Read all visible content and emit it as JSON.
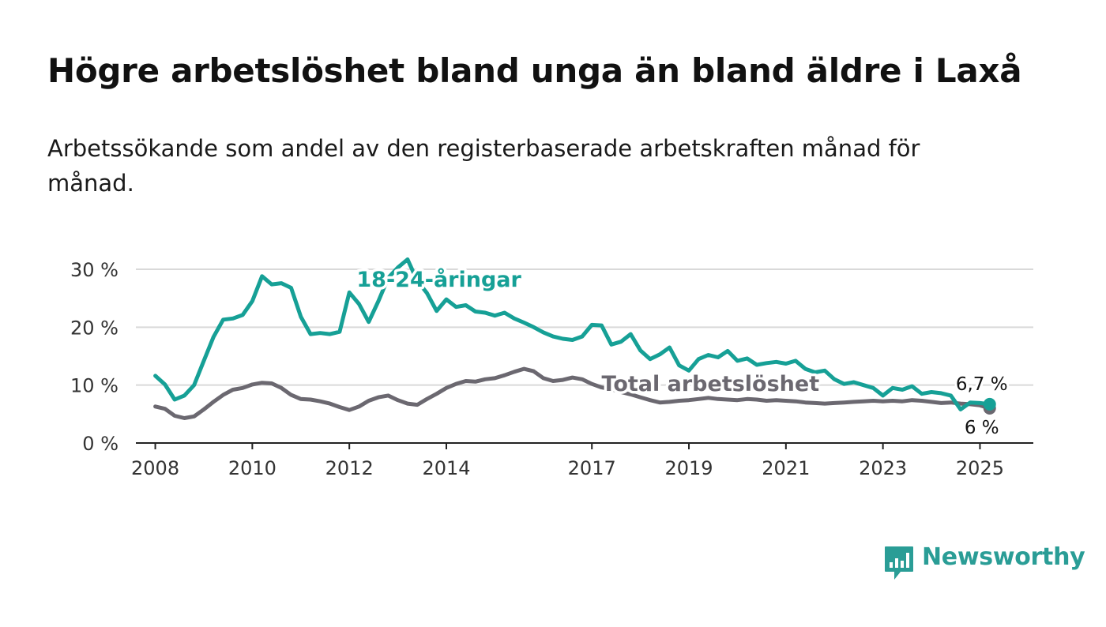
{
  "title": "Högre arbetslöshet bland unga än bland äldre i Laxå",
  "subtitle": "Arbetssökande som andel av den registerbaserade arbetskraften månad för månad.",
  "brand": {
    "name": "Newsworthy",
    "color": "#2a9d96",
    "icon": "bar-chart-speech-bubble-icon"
  },
  "chart_data": {
    "type": "line",
    "xlim": [
      2007.6,
      2026.1
    ],
    "ylim": [
      0,
      30
    ],
    "x_ticks": [
      2008,
      2010,
      2012,
      2014,
      2017,
      2019,
      2021,
      2023,
      2025
    ],
    "x_tick_labels": [
      "2008",
      "2010",
      "2012",
      "2014",
      "2017",
      "2019",
      "2021",
      "2023",
      "2025"
    ],
    "y_ticks": [
      0,
      10,
      20,
      30
    ],
    "y_tick_labels": [
      "0 %",
      "10 %",
      "20 %",
      "30 %"
    ],
    "grid": true,
    "series": [
      {
        "name": "Total arbetslöshet",
        "color": "#6b6870",
        "label": "Total arbetslöshet",
        "end_label": "6 %",
        "points": [
          [
            2008.0,
            6.3
          ],
          [
            2008.2,
            5.9
          ],
          [
            2008.4,
            4.7
          ],
          [
            2008.6,
            4.3
          ],
          [
            2008.8,
            4.6
          ],
          [
            2009.0,
            5.8
          ],
          [
            2009.2,
            7.1
          ],
          [
            2009.4,
            8.3
          ],
          [
            2009.6,
            9.2
          ],
          [
            2009.8,
            9.5
          ],
          [
            2010.0,
            10.1
          ],
          [
            2010.2,
            10.4
          ],
          [
            2010.4,
            10.3
          ],
          [
            2010.6,
            9.5
          ],
          [
            2010.8,
            8.3
          ],
          [
            2011.0,
            7.6
          ],
          [
            2011.2,
            7.5
          ],
          [
            2011.4,
            7.2
          ],
          [
            2011.6,
            6.8
          ],
          [
            2011.8,
            6.2
          ],
          [
            2012.0,
            5.7
          ],
          [
            2012.2,
            6.3
          ],
          [
            2012.4,
            7.3
          ],
          [
            2012.6,
            7.9
          ],
          [
            2012.8,
            8.2
          ],
          [
            2013.0,
            7.4
          ],
          [
            2013.2,
            6.8
          ],
          [
            2013.4,
            6.6
          ],
          [
            2013.6,
            7.6
          ],
          [
            2013.8,
            8.5
          ],
          [
            2014.0,
            9.5
          ],
          [
            2014.2,
            10.2
          ],
          [
            2014.4,
            10.7
          ],
          [
            2014.6,
            10.6
          ],
          [
            2014.8,
            11.0
          ],
          [
            2015.0,
            11.2
          ],
          [
            2015.2,
            11.7
          ],
          [
            2015.4,
            12.3
          ],
          [
            2015.6,
            12.8
          ],
          [
            2015.8,
            12.4
          ],
          [
            2016.0,
            11.2
          ],
          [
            2016.2,
            10.7
          ],
          [
            2016.4,
            10.9
          ],
          [
            2016.6,
            11.3
          ],
          [
            2016.8,
            11.0
          ],
          [
            2017.0,
            10.2
          ],
          [
            2017.2,
            9.6
          ],
          [
            2017.4,
            9.3
          ],
          [
            2017.6,
            8.8
          ],
          [
            2017.8,
            8.4
          ],
          [
            2018.0,
            7.9
          ],
          [
            2018.2,
            7.4
          ],
          [
            2018.4,
            7.0
          ],
          [
            2018.6,
            7.1
          ],
          [
            2018.8,
            7.3
          ],
          [
            2019.0,
            7.4
          ],
          [
            2019.2,
            7.6
          ],
          [
            2019.4,
            7.8
          ],
          [
            2019.6,
            7.6
          ],
          [
            2019.8,
            7.5
          ],
          [
            2020.0,
            7.4
          ],
          [
            2020.2,
            7.6
          ],
          [
            2020.4,
            7.5
          ],
          [
            2020.6,
            7.3
          ],
          [
            2020.8,
            7.4
          ],
          [
            2021.0,
            7.3
          ],
          [
            2021.2,
            7.2
          ],
          [
            2021.4,
            7.0
          ],
          [
            2021.6,
            6.9
          ],
          [
            2021.8,
            6.8
          ],
          [
            2022.0,
            6.9
          ],
          [
            2022.2,
            7.0
          ],
          [
            2022.4,
            7.1
          ],
          [
            2022.6,
            7.2
          ],
          [
            2022.8,
            7.3
          ],
          [
            2023.0,
            7.2
          ],
          [
            2023.2,
            7.3
          ],
          [
            2023.4,
            7.2
          ],
          [
            2023.6,
            7.4
          ],
          [
            2023.8,
            7.3
          ],
          [
            2024.0,
            7.1
          ],
          [
            2024.2,
            6.9
          ],
          [
            2024.4,
            7.0
          ],
          [
            2024.6,
            6.8
          ],
          [
            2024.8,
            6.7
          ],
          [
            2025.0,
            6.5
          ],
          [
            2025.2,
            6.0
          ]
        ]
      },
      {
        "name": "18-24-åringar",
        "color": "#16a096",
        "label": "18-24-åringar",
        "end_label": "6,7 %",
        "points": [
          [
            2008.0,
            11.6
          ],
          [
            2008.2,
            10.1
          ],
          [
            2008.4,
            7.5
          ],
          [
            2008.6,
            8.2
          ],
          [
            2008.8,
            10.0
          ],
          [
            2009.0,
            14.2
          ],
          [
            2009.2,
            18.3
          ],
          [
            2009.4,
            21.3
          ],
          [
            2009.6,
            21.5
          ],
          [
            2009.8,
            22.1
          ],
          [
            2010.0,
            24.5
          ],
          [
            2010.2,
            28.8
          ],
          [
            2010.4,
            27.4
          ],
          [
            2010.6,
            27.6
          ],
          [
            2010.8,
            26.8
          ],
          [
            2011.0,
            21.8
          ],
          [
            2011.2,
            18.8
          ],
          [
            2011.4,
            19.0
          ],
          [
            2011.6,
            18.8
          ],
          [
            2011.8,
            19.2
          ],
          [
            2012.0,
            26.0
          ],
          [
            2012.2,
            24.0
          ],
          [
            2012.4,
            20.9
          ],
          [
            2012.6,
            24.5
          ],
          [
            2012.8,
            28.5
          ],
          [
            2013.0,
            30.3
          ],
          [
            2013.2,
            31.7
          ],
          [
            2013.4,
            28.0
          ],
          [
            2013.6,
            25.9
          ],
          [
            2013.8,
            22.8
          ],
          [
            2014.0,
            24.8
          ],
          [
            2014.2,
            23.5
          ],
          [
            2014.4,
            23.8
          ],
          [
            2014.6,
            22.7
          ],
          [
            2014.8,
            22.5
          ],
          [
            2015.0,
            22.0
          ],
          [
            2015.2,
            22.5
          ],
          [
            2015.4,
            21.5
          ],
          [
            2015.6,
            20.8
          ],
          [
            2015.8,
            20.0
          ],
          [
            2016.0,
            19.1
          ],
          [
            2016.2,
            18.4
          ],
          [
            2016.4,
            18.0
          ],
          [
            2016.6,
            17.8
          ],
          [
            2016.8,
            18.4
          ],
          [
            2017.0,
            20.4
          ],
          [
            2017.2,
            20.3
          ],
          [
            2017.4,
            17.0
          ],
          [
            2017.6,
            17.5
          ],
          [
            2017.8,
            18.8
          ],
          [
            2018.0,
            16.0
          ],
          [
            2018.2,
            14.5
          ],
          [
            2018.4,
            15.3
          ],
          [
            2018.6,
            16.5
          ],
          [
            2018.8,
            13.4
          ],
          [
            2019.0,
            12.5
          ],
          [
            2019.2,
            14.5
          ],
          [
            2019.4,
            15.2
          ],
          [
            2019.6,
            14.8
          ],
          [
            2019.8,
            15.9
          ],
          [
            2020.0,
            14.2
          ],
          [
            2020.2,
            14.6
          ],
          [
            2020.4,
            13.5
          ],
          [
            2020.6,
            13.8
          ],
          [
            2020.8,
            14.0
          ],
          [
            2021.0,
            13.7
          ],
          [
            2021.2,
            14.2
          ],
          [
            2021.4,
            12.8
          ],
          [
            2021.6,
            12.2
          ],
          [
            2021.8,
            12.5
          ],
          [
            2022.0,
            11.0
          ],
          [
            2022.2,
            10.2
          ],
          [
            2022.4,
            10.5
          ],
          [
            2022.6,
            10.0
          ],
          [
            2022.8,
            9.5
          ],
          [
            2023.0,
            8.2
          ],
          [
            2023.2,
            9.5
          ],
          [
            2023.4,
            9.2
          ],
          [
            2023.6,
            9.8
          ],
          [
            2023.8,
            8.5
          ],
          [
            2024.0,
            8.8
          ],
          [
            2024.2,
            8.6
          ],
          [
            2024.4,
            8.2
          ],
          [
            2024.6,
            5.8
          ],
          [
            2024.8,
            7.0
          ],
          [
            2025.0,
            6.9
          ],
          [
            2025.2,
            6.7
          ]
        ]
      }
    ]
  }
}
